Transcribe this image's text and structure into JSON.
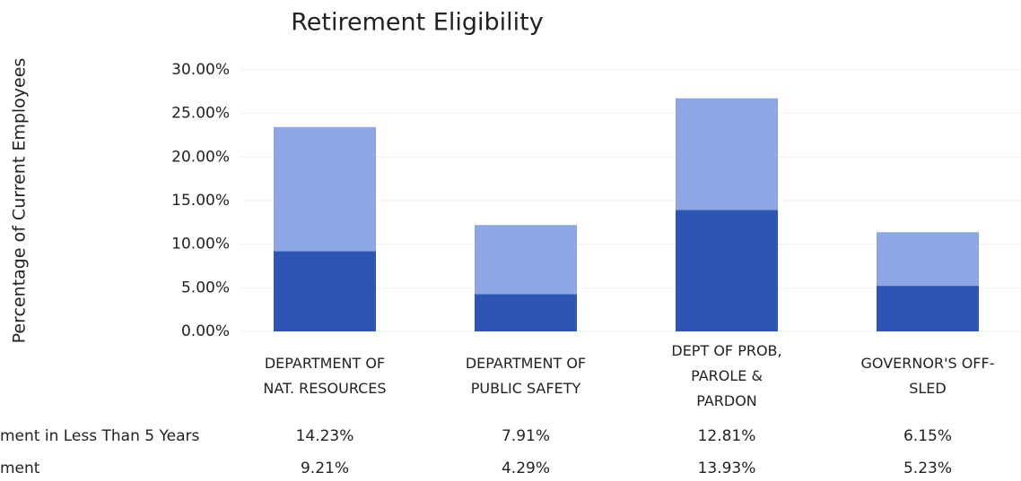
{
  "chart_data": {
    "type": "stacked_bar",
    "title": "Retirement Eligibility",
    "y_label": "Percentage of Current Employees",
    "categories": [
      "DEPARTMENT OF\nNAT. RESOURCES",
      "DEPARTMENT OF\nPUBLIC SAFETY",
      "DEPT OF PROB,\nPAROLE &\nPARDON",
      "GOVERNOR'S OFF-\nSLED"
    ],
    "series": [
      {
        "name": "ment in Less Than 5 Years",
        "color": "#8ea6e4",
        "values": [
          14.23,
          7.91,
          12.81,
          6.15
        ],
        "value_labels": [
          "14.23%",
          "7.91%",
          "12.81%",
          "6.15%"
        ]
      },
      {
        "name": "ment",
        "color": "#2f55b4",
        "values": [
          9.21,
          4.29,
          13.93,
          5.23
        ],
        "value_labels": [
          "9.21%",
          "4.29%",
          "13.93%",
          "5.23%"
        ]
      }
    ],
    "ylim": [
      0,
      30
    ],
    "yticks": [
      {
        "value": 0,
        "label": "0.00%"
      },
      {
        "value": 5,
        "label": "5.00%"
      },
      {
        "value": 10,
        "label": "10.00%"
      },
      {
        "value": 15,
        "label": "15.00%"
      },
      {
        "value": 20,
        "label": "20.00%"
      },
      {
        "value": 25,
        "label": "25.00%"
      },
      {
        "value": 30,
        "label": "30.00%"
      }
    ],
    "grid": true
  }
}
